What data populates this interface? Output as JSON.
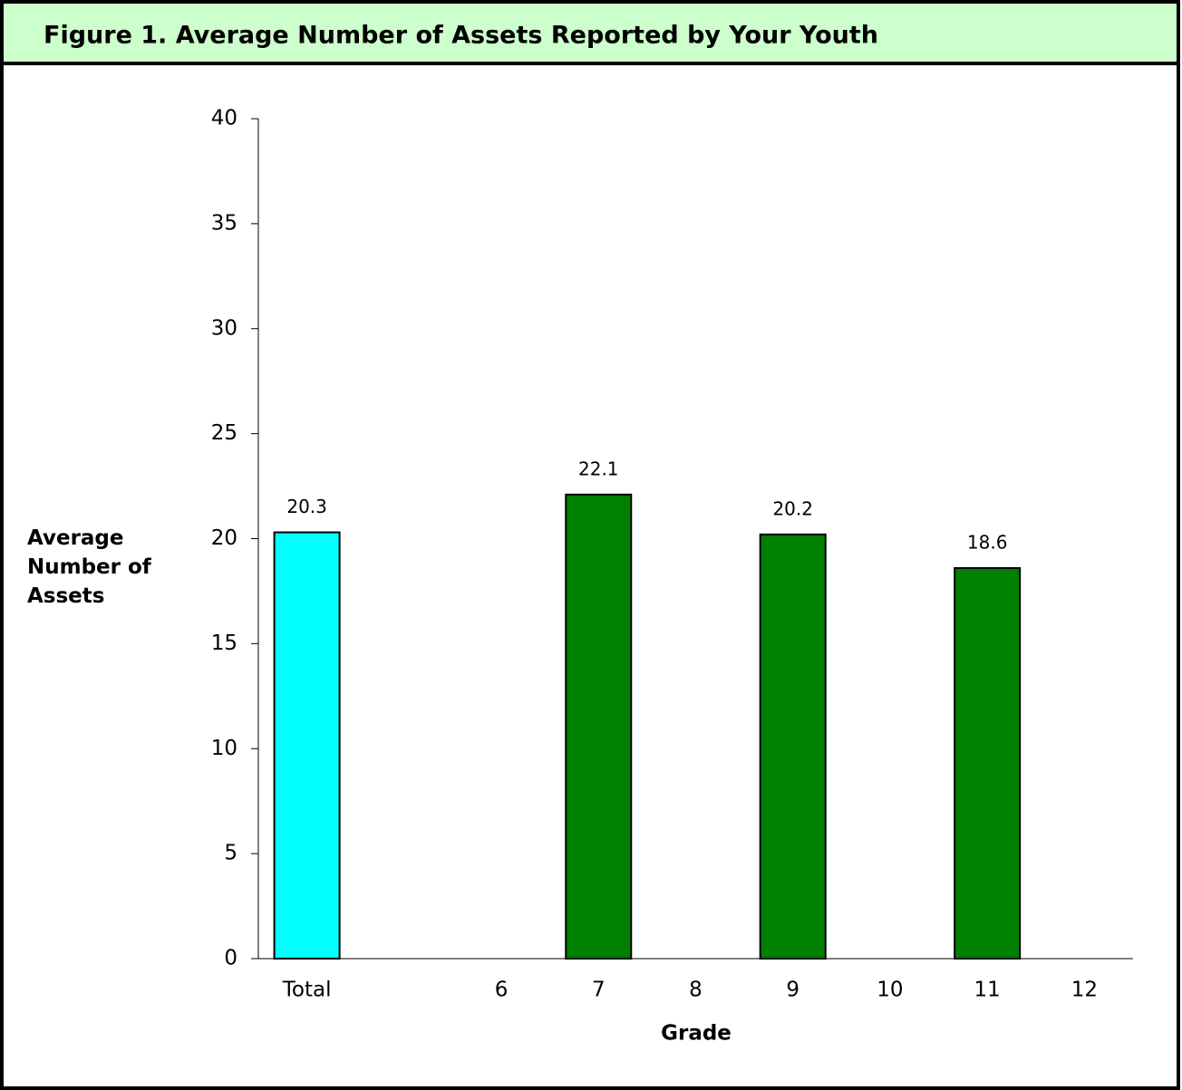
{
  "chart_data": {
    "type": "bar",
    "title": "Figure 1.  Average Number of Assets Reported by Your Youth",
    "ylabel": "Average Number of Assets",
    "xlabel": "Grade",
    "categories": [
      "Total",
      null,
      "6",
      "7",
      "8",
      "9",
      "10",
      "11",
      "12"
    ],
    "values": [
      20.3,
      null,
      null,
      22.1,
      null,
      20.2,
      null,
      18.6,
      null
    ],
    "colors": [
      "#00ffff",
      null,
      "#008000",
      "#008000",
      "#008000",
      "#008000",
      "#008000",
      "#008000",
      "#008000"
    ],
    "ylim": [
      0,
      40
    ],
    "yticks": [
      0,
      5,
      10,
      15,
      20,
      25,
      30,
      35,
      40
    ],
    "grid": false
  }
}
